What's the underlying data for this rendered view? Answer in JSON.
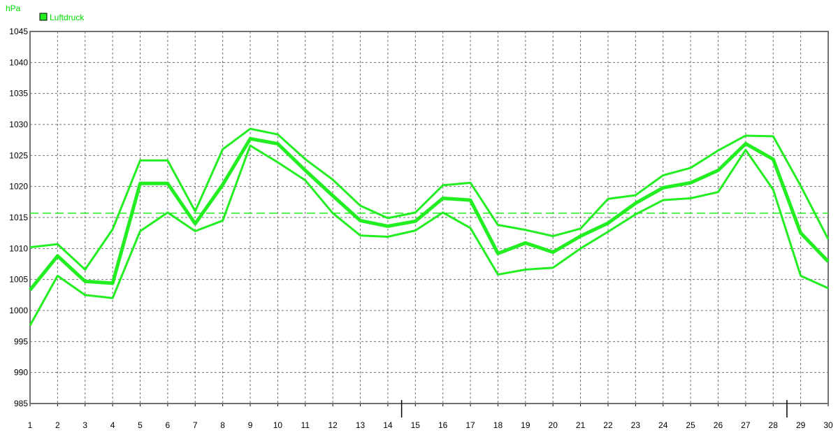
{
  "chart_data": {
    "type": "line",
    "ylabel": "hPa",
    "ylim": [
      985,
      1045
    ],
    "ystep": 5,
    "x": [
      1,
      2,
      3,
      4,
      5,
      6,
      7,
      8,
      9,
      10,
      11,
      12,
      13,
      14,
      15,
      16,
      17,
      18,
      19,
      20,
      21,
      22,
      23,
      24,
      25,
      26,
      27,
      28,
      29,
      30
    ],
    "grid": true,
    "legend": {
      "position": "top-left",
      "label": "Luftdruck"
    },
    "series": [
      {
        "role": "max",
        "values": [
          1010.2,
          1010.7,
          1006.6,
          1013.1,
          1024.2,
          1024.2,
          1016.0,
          1026.0,
          1029.3,
          1028.4,
          1024.4,
          1021.1,
          1016.9,
          1014.9,
          1015.8,
          1020.2,
          1020.6,
          1013.8,
          1013.0,
          1012.0,
          1013.2,
          1018.0,
          1018.6,
          1021.8,
          1023.0,
          1025.8,
          1028.2,
          1028.1,
          1020.1,
          1011.5
        ],
        "stroke": 3
      },
      {
        "role": "mean",
        "values": [
          1003.3,
          1008.8,
          1004.7,
          1004.4,
          1020.5,
          1020.5,
          1014.0,
          1020.3,
          1027.7,
          1026.9,
          1022.6,
          1018.5,
          1014.5,
          1013.6,
          1014.4,
          1018.1,
          1017.8,
          1009.2,
          1010.9,
          1009.4,
          1012.0,
          1014.1,
          1017.3,
          1019.8,
          1020.6,
          1022.6,
          1026.9,
          1024.4,
          1012.5,
          1007.9
        ],
        "stroke": 5
      },
      {
        "role": "min",
        "values": [
          997.6,
          1005.6,
          1002.5,
          1002.0,
          1012.8,
          1015.8,
          1012.8,
          1014.5,
          1026.6,
          1023.9,
          1021.0,
          1015.7,
          1012.1,
          1011.9,
          1012.9,
          1015.8,
          1013.3,
          1005.8,
          1006.6,
          1006.9,
          1010.0,
          1012.7,
          1015.5,
          1017.8,
          1018.1,
          1019.1,
          1025.9,
          1019.5,
          1005.6,
          1003.6
        ],
        "stroke": 3
      }
    ],
    "reference_line": {
      "y": 1015.7,
      "style": "dashed"
    }
  },
  "colors": {
    "line": "#22ee22",
    "axis_text": "#00dd00",
    "grid": "#707070",
    "frame": "#707070"
  }
}
